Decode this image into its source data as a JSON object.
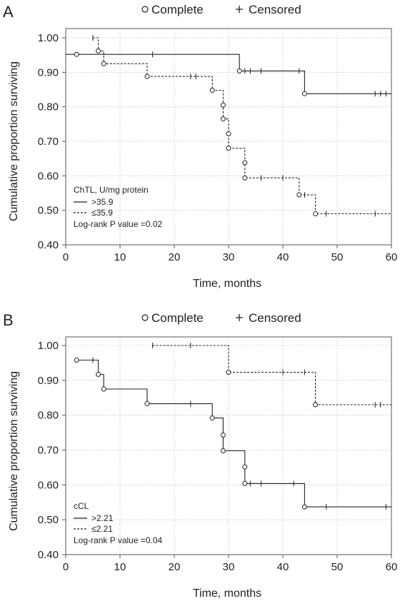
{
  "chart_data": [
    {
      "type": "line",
      "panel_label": "A",
      "legend_top": {
        "complete_label": "Complete",
        "censored_label": "Censored"
      },
      "xlabel": "Time, months",
      "ylabel": "Cumulative proportion surviving",
      "xlim": [
        0,
        60
      ],
      "ylim": [
        0.4,
        1.05
      ],
      "xticks": [
        0,
        10,
        20,
        30,
        40,
        50,
        60
      ],
      "yticks": [
        0.4,
        0.5,
        0.6,
        0.7,
        0.8,
        0.9,
        1.0
      ],
      "ytick_labels": [
        "0.40",
        "0.50",
        "0.60",
        "0.70",
        "0.80",
        "0.90",
        "1.00"
      ],
      "grid": true,
      "legend_title": "ChTL, U/mg protein",
      "pvalue_text": "Log-rank P value =0.02",
      "series": [
        {
          "name": ">35.9",
          "style": "solid",
          "steps": [
            [
              0,
              0.952
            ],
            [
              32,
              0.952
            ],
            [
              32,
              0.904
            ],
            [
              44,
              0.904
            ],
            [
              44,
              0.838
            ],
            [
              60,
              0.838
            ]
          ],
          "events": [
            [
              2,
              0.952
            ],
            [
              32,
              0.904
            ],
            [
              44,
              0.838
            ]
          ],
          "censored": [
            [
              16,
              0.952
            ],
            [
              33,
              0.904
            ],
            [
              34,
              0.904
            ],
            [
              36,
              0.904
            ],
            [
              43,
              0.904
            ],
            [
              57,
              0.838
            ],
            [
              58,
              0.838
            ],
            [
              59,
              0.838
            ]
          ]
        },
        {
          "name": "≤35.9",
          "style": "dashed",
          "steps": [
            [
              5,
              1.0
            ],
            [
              6,
              1.0
            ],
            [
              6,
              0.962
            ],
            [
              7,
              0.962
            ],
            [
              7,
              0.925
            ],
            [
              15,
              0.925
            ],
            [
              15,
              0.888
            ],
            [
              27,
              0.888
            ],
            [
              27,
              0.848
            ],
            [
              29,
              0.848
            ],
            [
              29,
              0.805
            ],
            [
              29,
              0.765
            ],
            [
              30,
              0.765
            ],
            [
              30,
              0.722
            ],
            [
              30,
              0.68
            ],
            [
              33,
              0.68
            ],
            [
              33,
              0.638
            ],
            [
              33,
              0.594
            ],
            [
              43,
              0.594
            ],
            [
              43,
              0.545
            ],
            [
              46,
              0.545
            ],
            [
              46,
              0.49
            ],
            [
              60,
              0.49
            ]
          ],
          "events": [
            [
              6,
              0.962
            ],
            [
              7,
              0.925
            ],
            [
              15,
              0.888
            ],
            [
              27,
              0.848
            ],
            [
              29,
              0.805
            ],
            [
              29,
              0.765
            ],
            [
              30,
              0.722
            ],
            [
              30,
              0.68
            ],
            [
              33,
              0.638
            ],
            [
              33,
              0.594
            ],
            [
              43,
              0.545
            ],
            [
              46,
              0.49
            ]
          ],
          "censored": [
            [
              5,
              1.0
            ],
            [
              23,
              0.888
            ],
            [
              24,
              0.888
            ],
            [
              36,
              0.594
            ],
            [
              40,
              0.594
            ],
            [
              44,
              0.545
            ],
            [
              48,
              0.49
            ],
            [
              57,
              0.49
            ]
          ]
        }
      ]
    },
    {
      "type": "line",
      "panel_label": "B",
      "legend_top": {
        "complete_label": "Complete",
        "censored_label": "Censored"
      },
      "xlabel": "Time, months",
      "ylabel": "Cumulative proportion surviving",
      "xlim": [
        0,
        60
      ],
      "ylim": [
        0.4,
        1.05
      ],
      "xticks": [
        0,
        10,
        20,
        30,
        40,
        50,
        60
      ],
      "yticks": [
        0.4,
        0.5,
        0.6,
        0.7,
        0.8,
        0.9,
        1.0
      ],
      "ytick_labels": [
        "0.40",
        "0.50",
        "0.60",
        "0.70",
        "0.80",
        "0.90",
        "1.00"
      ],
      "grid": true,
      "legend_title": "cCL",
      "pvalue_text": "Log-rank P value =0.04",
      "series": [
        {
          "name": ">2.21",
          "style": "solid",
          "steps": [
            [
              2,
              0.958
            ],
            [
              6,
              0.958
            ],
            [
              6,
              0.917
            ],
            [
              7,
              0.917
            ],
            [
              7,
              0.875
            ],
            [
              15,
              0.875
            ],
            [
              15,
              0.833
            ],
            [
              27,
              0.833
            ],
            [
              27,
              0.792
            ],
            [
              29,
              0.792
            ],
            [
              29,
              0.743
            ],
            [
              29,
              0.698
            ],
            [
              33,
              0.698
            ],
            [
              33,
              0.652
            ],
            [
              33,
              0.604
            ],
            [
              44,
              0.604
            ],
            [
              44,
              0.537
            ],
            [
              60,
              0.537
            ]
          ],
          "events": [
            [
              2,
              0.958
            ],
            [
              6,
              0.917
            ],
            [
              7,
              0.875
            ],
            [
              15,
              0.833
            ],
            [
              27,
              0.792
            ],
            [
              29,
              0.743
            ],
            [
              29,
              0.698
            ],
            [
              33,
              0.652
            ],
            [
              33,
              0.604
            ],
            [
              44,
              0.537
            ]
          ],
          "censored": [
            [
              5,
              0.958
            ],
            [
              23,
              0.833
            ],
            [
              34,
              0.604
            ],
            [
              36,
              0.604
            ],
            [
              42,
              0.604
            ],
            [
              48,
              0.537
            ],
            [
              59,
              0.537
            ]
          ]
        },
        {
          "name": "≤2.21",
          "style": "dashed",
          "steps": [
            [
              16,
              1.0
            ],
            [
              30,
              1.0
            ],
            [
              30,
              0.923
            ],
            [
              46,
              0.923
            ],
            [
              46,
              0.83
            ],
            [
              60,
              0.83
            ]
          ],
          "events": [
            [
              30,
              0.923
            ],
            [
              46,
              0.83
            ]
          ],
          "censored": [
            [
              16,
              1.0
            ],
            [
              23,
              1.0
            ],
            [
              40,
              0.923
            ],
            [
              44,
              0.923
            ],
            [
              57,
              0.83
            ],
            [
              58,
              0.83
            ]
          ]
        }
      ]
    }
  ]
}
